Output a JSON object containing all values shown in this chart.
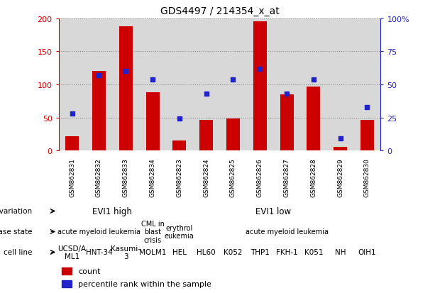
{
  "title": "GDS4497 / 214354_x_at",
  "samples": [
    "GSM862831",
    "GSM862832",
    "GSM862833",
    "GSM862834",
    "GSM862823",
    "GSM862824",
    "GSM862825",
    "GSM862826",
    "GSM862827",
    "GSM862828",
    "GSM862829",
    "GSM862830"
  ],
  "counts": [
    22,
    120,
    188,
    88,
    15,
    46,
    48,
    196,
    85,
    97,
    6,
    46
  ],
  "percentiles": [
    28,
    57,
    60,
    54,
    24,
    43,
    54,
    62,
    43,
    54,
    9,
    33
  ],
  "ylim_left": [
    0,
    200
  ],
  "ylim_right": [
    0,
    100
  ],
  "yticks_left": [
    0,
    50,
    100,
    150,
    200
  ],
  "yticks_right": [
    0,
    25,
    50,
    75,
    100
  ],
  "yticklabels_right": [
    "0",
    "25",
    "50",
    "75",
    "100%"
  ],
  "bar_color": "#cc0000",
  "dot_color": "#2222cc",
  "grid_color": "#888888",
  "bg_color": "#d8d8d8",
  "tick_bg_color": "#c0c0c0",
  "left_yaxis_color": "#cc0000",
  "right_yaxis_color": "#2222cc",
  "row_genotype_groups": [
    {
      "text": "EVI1 high",
      "start": 0,
      "end": 4,
      "color": "#88dd88"
    },
    {
      "text": "EVI1 low",
      "start": 4,
      "end": 12,
      "color": "#66cc55"
    }
  ],
  "disease_groups": [
    {
      "text": "acute myeloid leukemia",
      "start": 0,
      "end": 3,
      "color": "#aaaaee"
    },
    {
      "text": "CML in\nblast\ncrisis",
      "start": 3,
      "end": 4,
      "color": "#8888cc"
    },
    {
      "text": "erythrol\neukemia",
      "start": 4,
      "end": 5,
      "color": "#aaaaee"
    },
    {
      "text": "acute myeloid leukemia",
      "start": 5,
      "end": 12,
      "color": "#aaaaee"
    }
  ],
  "cell_groups": [
    {
      "text": "UCSD/A\nML1",
      "start": 0,
      "end": 1,
      "color": "#cc9999"
    },
    {
      "text": "HNT-34",
      "start": 1,
      "end": 2,
      "color": "#cc9999"
    },
    {
      "text": "Kasumi-\n3",
      "start": 2,
      "end": 3,
      "color": "#cc9999"
    },
    {
      "text": "MOLM1",
      "start": 3,
      "end": 4,
      "color": "#cc9999"
    },
    {
      "text": "HEL",
      "start": 4,
      "end": 5,
      "color": "#ee9999"
    },
    {
      "text": "HL60",
      "start": 5,
      "end": 6,
      "color": "#ee9999"
    },
    {
      "text": "K052",
      "start": 6,
      "end": 7,
      "color": "#ee9999"
    },
    {
      "text": "THP1",
      "start": 7,
      "end": 8,
      "color": "#ee9999"
    },
    {
      "text": "FKH-1",
      "start": 8,
      "end": 9,
      "color": "#ee9999"
    },
    {
      "text": "K051",
      "start": 9,
      "end": 10,
      "color": "#ee9999"
    },
    {
      "text": "NH",
      "start": 10,
      "end": 11,
      "color": "#ee9999"
    },
    {
      "text": "OIH1",
      "start": 11,
      "end": 12,
      "color": "#ee9999"
    }
  ]
}
